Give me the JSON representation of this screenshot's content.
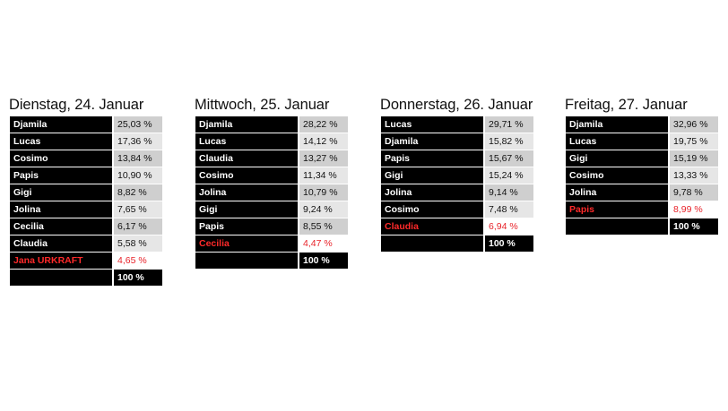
{
  "days": [
    {
      "title": "Dienstag, 24. Januar",
      "rows": [
        {
          "name": "Djamila",
          "pct": "25,03 %"
        },
        {
          "name": "Lucas",
          "pct": "17,36 %"
        },
        {
          "name": "Cosimo",
          "pct": "13,84 %"
        },
        {
          "name": "Papis",
          "pct": "10,90 %"
        },
        {
          "name": "Gigi",
          "pct": "8,82 %"
        },
        {
          "name": "Jolina",
          "pct": "7,65 %"
        },
        {
          "name": "Cecilia",
          "pct": "6,17 %"
        },
        {
          "name": "Claudia",
          "pct": "5,58 %"
        },
        {
          "name": "Jana URKRAFT",
          "pct": "4,65 %",
          "eliminated": true
        }
      ],
      "total": "100 %"
    },
    {
      "title": "Mittwoch, 25. Januar",
      "rows": [
        {
          "name": "Djamila",
          "pct": "28,22 %"
        },
        {
          "name": "Lucas",
          "pct": "14,12 %"
        },
        {
          "name": "Claudia",
          "pct": "13,27 %"
        },
        {
          "name": "Cosimo",
          "pct": "11,34 %"
        },
        {
          "name": "Jolina",
          "pct": "10,79 %"
        },
        {
          "name": "Gigi",
          "pct": "9,24 %"
        },
        {
          "name": "Papis",
          "pct": "8,55 %"
        },
        {
          "name": "Cecilia",
          "pct": "4,47 %",
          "eliminated": true
        }
      ],
      "total": "100 %"
    },
    {
      "title": "Donnerstag, 26. Januar",
      "rows": [
        {
          "name": "Lucas",
          "pct": "29,71 %"
        },
        {
          "name": "Djamila",
          "pct": "15,82 %"
        },
        {
          "name": "Papis",
          "pct": "15,67 %"
        },
        {
          "name": "Gigi",
          "pct": "15,24 %"
        },
        {
          "name": "Jolina",
          "pct": "9,14 %"
        },
        {
          "name": "Cosimo",
          "pct": "7,48 %"
        },
        {
          "name": "Claudia",
          "pct": "6,94 %",
          "eliminated": true
        }
      ],
      "total": "100 %"
    },
    {
      "title": "Freitag, 27. Januar",
      "rows": [
        {
          "name": "Djamila",
          "pct": "32,96 %"
        },
        {
          "name": "Lucas",
          "pct": "19,75 %"
        },
        {
          "name": "Gigi",
          "pct": "15,19 %"
        },
        {
          "name": "Cosimo",
          "pct": "13,33 %"
        },
        {
          "name": "Jolina",
          "pct": "9,78 %"
        },
        {
          "name": "Papis",
          "pct": "8,99 %",
          "eliminated": true
        }
      ],
      "total": "100 %"
    }
  ],
  "colors": {
    "name_bg": "#000000",
    "name_text": "#ffffff",
    "eliminated_text": "#e8232a",
    "pct_bg_even": "#cfcfcf",
    "pct_bg_odd": "#e6e6e6"
  }
}
